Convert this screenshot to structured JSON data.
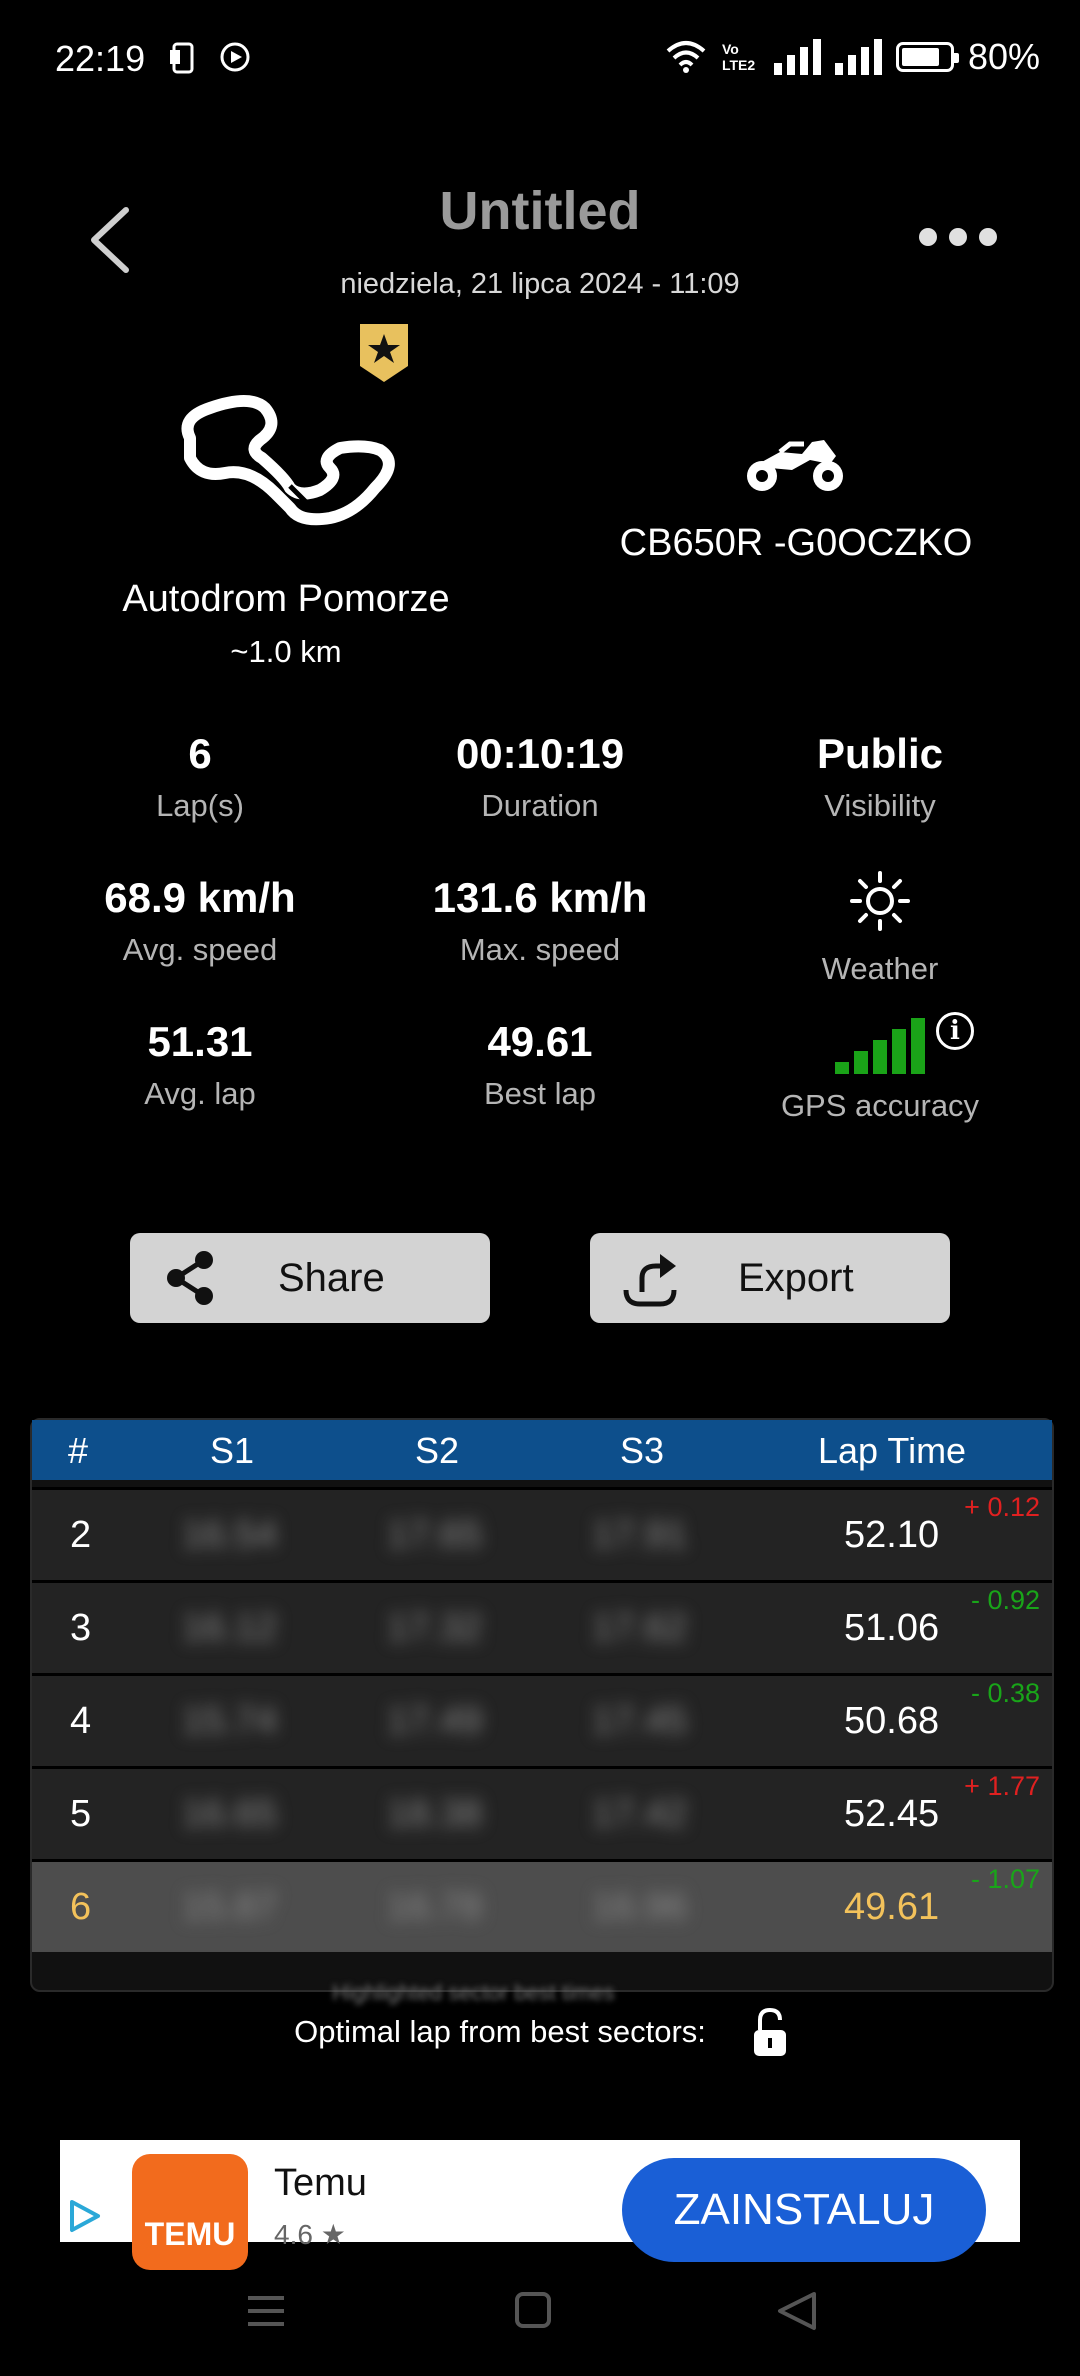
{
  "status_bar": {
    "time": "22:19",
    "battery": "80%",
    "battery_level": 0.8,
    "network_label": "Vo LTE2"
  },
  "header": {
    "title": "Untitled",
    "date": "niedziela, 21 lipca 2024  -  11:09"
  },
  "track": {
    "name": "Autodrom Pomorze",
    "length": "~1.0 km"
  },
  "bike": {
    "name": "CB650R -G0OCZKO"
  },
  "stats": {
    "laps_value": "6",
    "laps_label": "Lap(s)",
    "duration_value": "00:10:19",
    "duration_label": "Duration",
    "visibility_value": "Public",
    "visibility_label": "Visibility",
    "avg_speed_value": "68.9 km/h",
    "avg_speed_label": "Avg. speed",
    "max_speed_value": "131.6 km/h",
    "max_speed_label": "Max. speed",
    "weather_label": "Weather",
    "avg_lap_value": "51.31",
    "avg_lap_label": "Avg. lap",
    "best_lap_value": "49.61",
    "best_lap_label": "Best lap",
    "gps_label": "GPS accuracy",
    "gps_bars": 5,
    "info_glyph": "i"
  },
  "actions": {
    "share_label": "Share",
    "export_label": "Export"
  },
  "table": {
    "headers": [
      "#",
      "S1",
      "S2",
      "S3",
      "Lap Time"
    ],
    "rows": [
      {
        "lap": "2",
        "s1": "16.54",
        "s2": "17.65",
        "s3": "17.91",
        "time": "52.10",
        "delta": "+ 0.12"
      },
      {
        "lap": "3",
        "s1": "16.12",
        "s2": "17.32",
        "s3": "17.62",
        "time": "51.06",
        "delta": "- 0.92"
      },
      {
        "lap": "4",
        "s1": "15.74",
        "s2": "17.49",
        "s3": "17.45",
        "time": "50.68",
        "delta": "- 0.38"
      },
      {
        "lap": "5",
        "s1": "16.65",
        "s2": "18.38",
        "s3": "17.42",
        "time": "52.45",
        "delta": "+ 1.77"
      },
      {
        "lap": "6",
        "s1": "15.87",
        "s2": "16.78",
        "s3": "16.96",
        "time": "49.61",
        "delta": "- 1.07"
      }
    ],
    "footnote": "Highlighted sector best times"
  },
  "optimal_lap": {
    "label": "Optimal lap from best sectors:"
  },
  "ad": {
    "app_name": "Temu",
    "logo_text": "TEMU",
    "rating": "4.6 ★",
    "install_label": "ZAINSTALUJ"
  },
  "colors": {
    "table_header": "#0d4f8c",
    "best_lap": "#f3c25b",
    "delta_negative": "#19a519",
    "delta_positive": "#e02020",
    "gps_green": "#1aa318",
    "badge_gold": "#e8c15e",
    "ad_button": "#1a5fd6",
    "temu_orange": "#f26b1d"
  }
}
